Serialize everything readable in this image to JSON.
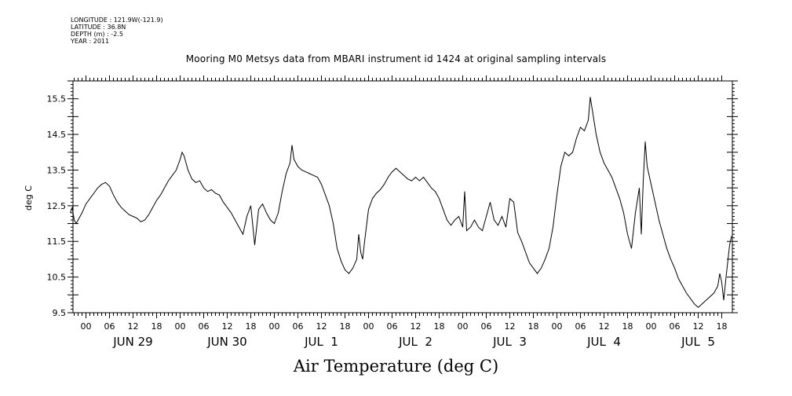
{
  "meta": {
    "longitude": "LONGITUDE : 121.9W(-121.9)",
    "latitude": "LATITUDE : 36.8N",
    "depth": "DEPTH (m) : -2.5",
    "year": "YEAR : 2011"
  },
  "chart_data": {
    "type": "line",
    "title": "Mooring M0 Metsys data from MBARI instrument id 1424 at original sampling intervals",
    "xlabel": "Air Temperature (deg C)",
    "ylabel": "deg C",
    "ylim": [
      9.5,
      16.0
    ],
    "yticks": [
      "9.5",
      "10.5",
      "11.5",
      "12.5",
      "13.5",
      "14.5",
      "15.5"
    ],
    "xlim_hours": [
      -6,
      162
    ],
    "hour_tick_labels": [
      "00",
      "06",
      "12",
      "18",
      "00",
      "06",
      "12",
      "18",
      "00",
      "06",
      "12",
      "18",
      "00",
      "06",
      "12",
      "18",
      "00",
      "06",
      "12",
      "18",
      "00",
      "06",
      "12",
      "18",
      "00",
      "06",
      "12",
      "18"
    ],
    "day_labels": [
      "JUN 29",
      "JUN 30",
      "JUL  1",
      "JUL  2",
      "JUL  3",
      "JUL  4",
      "JUL  5"
    ],
    "grid": false,
    "series": [
      {
        "values_by_hour": [
          [
            -4.0,
            12.3
          ],
          [
            -3.5,
            12.45
          ],
          [
            -3,
            12.1
          ],
          [
            -2.5,
            12.0
          ],
          [
            -2,
            12.1
          ],
          [
            -1,
            12.3
          ],
          [
            0,
            12.55
          ],
          [
            1,
            12.7
          ],
          [
            2,
            12.85
          ],
          [
            3,
            13.0
          ],
          [
            4,
            13.1
          ],
          [
            5,
            13.15
          ],
          [
            6,
            13.05
          ],
          [
            7,
            12.8
          ],
          [
            8,
            12.6
          ],
          [
            9,
            12.45
          ],
          [
            10,
            12.35
          ],
          [
            11,
            12.25
          ],
          [
            12,
            12.2
          ],
          [
            13,
            12.15
          ],
          [
            14,
            12.05
          ],
          [
            15,
            12.1
          ],
          [
            16,
            12.25
          ],
          [
            17,
            12.45
          ],
          [
            18,
            12.65
          ],
          [
            19,
            12.8
          ],
          [
            20,
            13.0
          ],
          [
            21,
            13.2
          ],
          [
            22,
            13.35
          ],
          [
            23,
            13.5
          ],
          [
            24,
            13.8
          ],
          [
            24.5,
            14.0
          ],
          [
            25,
            13.9
          ],
          [
            26,
            13.5
          ],
          [
            27,
            13.25
          ],
          [
            28,
            13.15
          ],
          [
            29,
            13.2
          ],
          [
            30,
            13.0
          ],
          [
            31,
            12.9
          ],
          [
            32,
            12.95
          ],
          [
            33,
            12.85
          ],
          [
            34,
            12.8
          ],
          [
            35,
            12.6
          ],
          [
            36,
            12.45
          ],
          [
            37,
            12.3
          ],
          [
            38,
            12.1
          ],
          [
            39,
            11.9
          ],
          [
            40,
            11.7
          ],
          [
            41,
            12.2
          ],
          [
            42,
            12.5
          ],
          [
            43,
            11.4
          ],
          [
            44,
            12.4
          ],
          [
            45,
            12.55
          ],
          [
            46,
            12.3
          ],
          [
            47,
            12.1
          ],
          [
            48,
            12.0
          ],
          [
            49,
            12.3
          ],
          [
            50,
            12.9
          ],
          [
            51,
            13.4
          ],
          [
            52,
            13.7
          ],
          [
            52.5,
            14.2
          ],
          [
            53,
            13.8
          ],
          [
            54,
            13.6
          ],
          [
            55,
            13.5
          ],
          [
            56,
            13.45
          ],
          [
            57,
            13.4
          ],
          [
            58,
            13.35
          ],
          [
            59,
            13.3
          ],
          [
            60,
            13.1
          ],
          [
            61,
            12.8
          ],
          [
            62,
            12.5
          ],
          [
            63,
            12.0
          ],
          [
            64,
            11.3
          ],
          [
            65,
            10.95
          ],
          [
            66,
            10.7
          ],
          [
            67,
            10.6
          ],
          [
            68,
            10.75
          ],
          [
            69,
            11.0
          ],
          [
            69.5,
            11.7
          ],
          [
            70,
            11.2
          ],
          [
            70.5,
            11.0
          ],
          [
            71,
            11.5
          ],
          [
            72,
            12.4
          ],
          [
            73,
            12.7
          ],
          [
            74,
            12.85
          ],
          [
            75,
            12.95
          ],
          [
            76,
            13.1
          ],
          [
            77,
            13.3
          ],
          [
            78,
            13.45
          ],
          [
            79,
            13.55
          ],
          [
            80,
            13.45
          ],
          [
            81,
            13.35
          ],
          [
            82,
            13.25
          ],
          [
            83,
            13.2
          ],
          [
            84,
            13.3
          ],
          [
            85,
            13.2
          ],
          [
            86,
            13.3
          ],
          [
            87,
            13.15
          ],
          [
            88,
            13.0
          ],
          [
            89,
            12.9
          ],
          [
            90,
            12.7
          ],
          [
            91,
            12.4
          ],
          [
            92,
            12.1
          ],
          [
            93,
            11.95
          ],
          [
            94,
            12.1
          ],
          [
            95,
            12.2
          ],
          [
            96,
            11.9
          ],
          [
            96.5,
            12.9
          ],
          [
            97,
            11.8
          ],
          [
            98,
            11.9
          ],
          [
            99,
            12.1
          ],
          [
            100,
            11.9
          ],
          [
            101,
            11.8
          ],
          [
            102,
            12.2
          ],
          [
            103,
            12.6
          ],
          [
            104,
            12.1
          ],
          [
            105,
            11.95
          ],
          [
            106,
            12.2
          ],
          [
            107,
            11.9
          ],
          [
            108,
            12.7
          ],
          [
            109,
            12.6
          ],
          [
            110,
            11.75
          ],
          [
            111,
            11.5
          ],
          [
            112,
            11.2
          ],
          [
            113,
            10.9
          ],
          [
            114,
            10.75
          ],
          [
            115,
            10.6
          ],
          [
            116,
            10.75
          ],
          [
            117,
            11.0
          ],
          [
            118,
            11.3
          ],
          [
            119,
            11.9
          ],
          [
            120,
            12.8
          ],
          [
            121,
            13.6
          ],
          [
            122,
            14.0
          ],
          [
            123,
            13.9
          ],
          [
            124,
            14.0
          ],
          [
            125,
            14.4
          ],
          [
            126,
            14.7
          ],
          [
            127,
            14.6
          ],
          [
            128,
            14.9
          ],
          [
            128.5,
            15.55
          ],
          [
            129,
            15.2
          ],
          [
            130,
            14.5
          ],
          [
            131,
            14.0
          ],
          [
            132,
            13.7
          ],
          [
            133,
            13.5
          ],
          [
            134,
            13.3
          ],
          [
            135,
            13.0
          ],
          [
            136,
            12.7
          ],
          [
            137,
            12.3
          ],
          [
            138,
            11.7
          ],
          [
            139,
            11.3
          ],
          [
            140,
            12.3
          ],
          [
            141,
            13.0
          ],
          [
            141.5,
            11.7
          ],
          [
            142,
            13.2
          ],
          [
            142.5,
            14.3
          ],
          [
            143,
            13.6
          ],
          [
            144,
            13.1
          ],
          [
            145,
            12.6
          ],
          [
            146,
            12.1
          ],
          [
            147,
            11.7
          ],
          [
            148,
            11.3
          ],
          [
            149,
            11.0
          ],
          [
            150,
            10.75
          ],
          [
            151,
            10.45
          ],
          [
            152,
            10.25
          ],
          [
            153,
            10.05
          ],
          [
            154,
            9.9
          ],
          [
            155,
            9.75
          ],
          [
            156,
            9.65
          ],
          [
            157,
            9.75
          ],
          [
            158,
            9.85
          ],
          [
            159,
            9.95
          ],
          [
            160,
            10.05
          ],
          [
            161,
            10.25
          ],
          [
            161.5,
            10.6
          ],
          [
            162,
            10.35
          ],
          [
            162.5,
            9.85
          ],
          [
            163,
            10.4
          ],
          [
            163.5,
            10.9
          ],
          [
            164,
            11.4
          ],
          [
            164.5,
            11.65
          ]
        ]
      }
    ]
  }
}
